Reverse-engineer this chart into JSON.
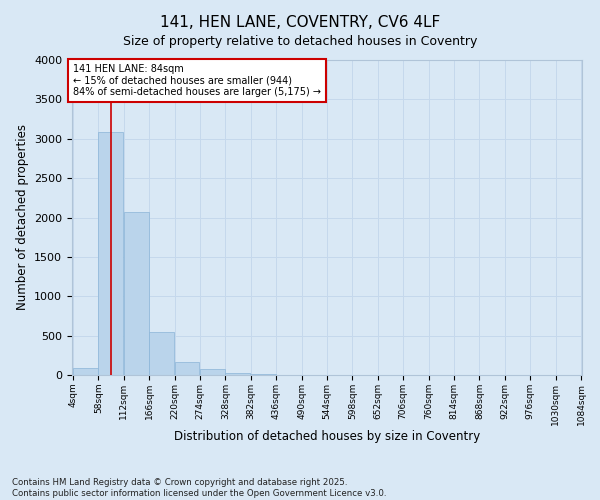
{
  "title": "141, HEN LANE, COVENTRY, CV6 4LF",
  "subtitle": "Size of property relative to detached houses in Coventry",
  "xlabel": "Distribution of detached houses by size in Coventry",
  "ylabel": "Number of detached properties",
  "footer_line1": "Contains HM Land Registry data © Crown copyright and database right 2025.",
  "footer_line2": "Contains public sector information licensed under the Open Government Licence v3.0.",
  "annotation_line1": "141 HEN LANE: 84sqm",
  "annotation_line2": "← 15% of detached houses are smaller (944)",
  "annotation_line3": "84% of semi-detached houses are larger (5,175) →",
  "bar_color": "#bad4eb",
  "bar_edge_color": "#8ab4d8",
  "grid_color": "#c5d8ec",
  "background_color": "#d9e8f5",
  "annotation_box_color": "#ffffff",
  "annotation_box_edge": "#cc0000",
  "vline_color": "#cc0000",
  "bin_labels": [
    "4sqm",
    "58sqm",
    "112sqm",
    "166sqm",
    "220sqm",
    "274sqm",
    "328sqm",
    "382sqm",
    "436sqm",
    "490sqm",
    "544sqm",
    "598sqm",
    "652sqm",
    "706sqm",
    "760sqm",
    "814sqm",
    "868sqm",
    "922sqm",
    "976sqm",
    "1030sqm",
    "1084sqm"
  ],
  "bin_edges": [
    4,
    58,
    112,
    166,
    220,
    274,
    328,
    382,
    436,
    490,
    544,
    598,
    652,
    706,
    760,
    814,
    868,
    922,
    976,
    1030,
    1084
  ],
  "bar_heights": [
    95,
    3090,
    2070,
    545,
    170,
    70,
    28,
    12,
    6,
    4,
    2,
    1,
    1,
    0,
    0,
    0,
    0,
    0,
    0,
    0
  ],
  "ylim": [
    0,
    4000
  ],
  "yticks": [
    0,
    500,
    1000,
    1500,
    2000,
    2500,
    3000,
    3500,
    4000
  ],
  "property_size": 84,
  "vline_x": 84
}
